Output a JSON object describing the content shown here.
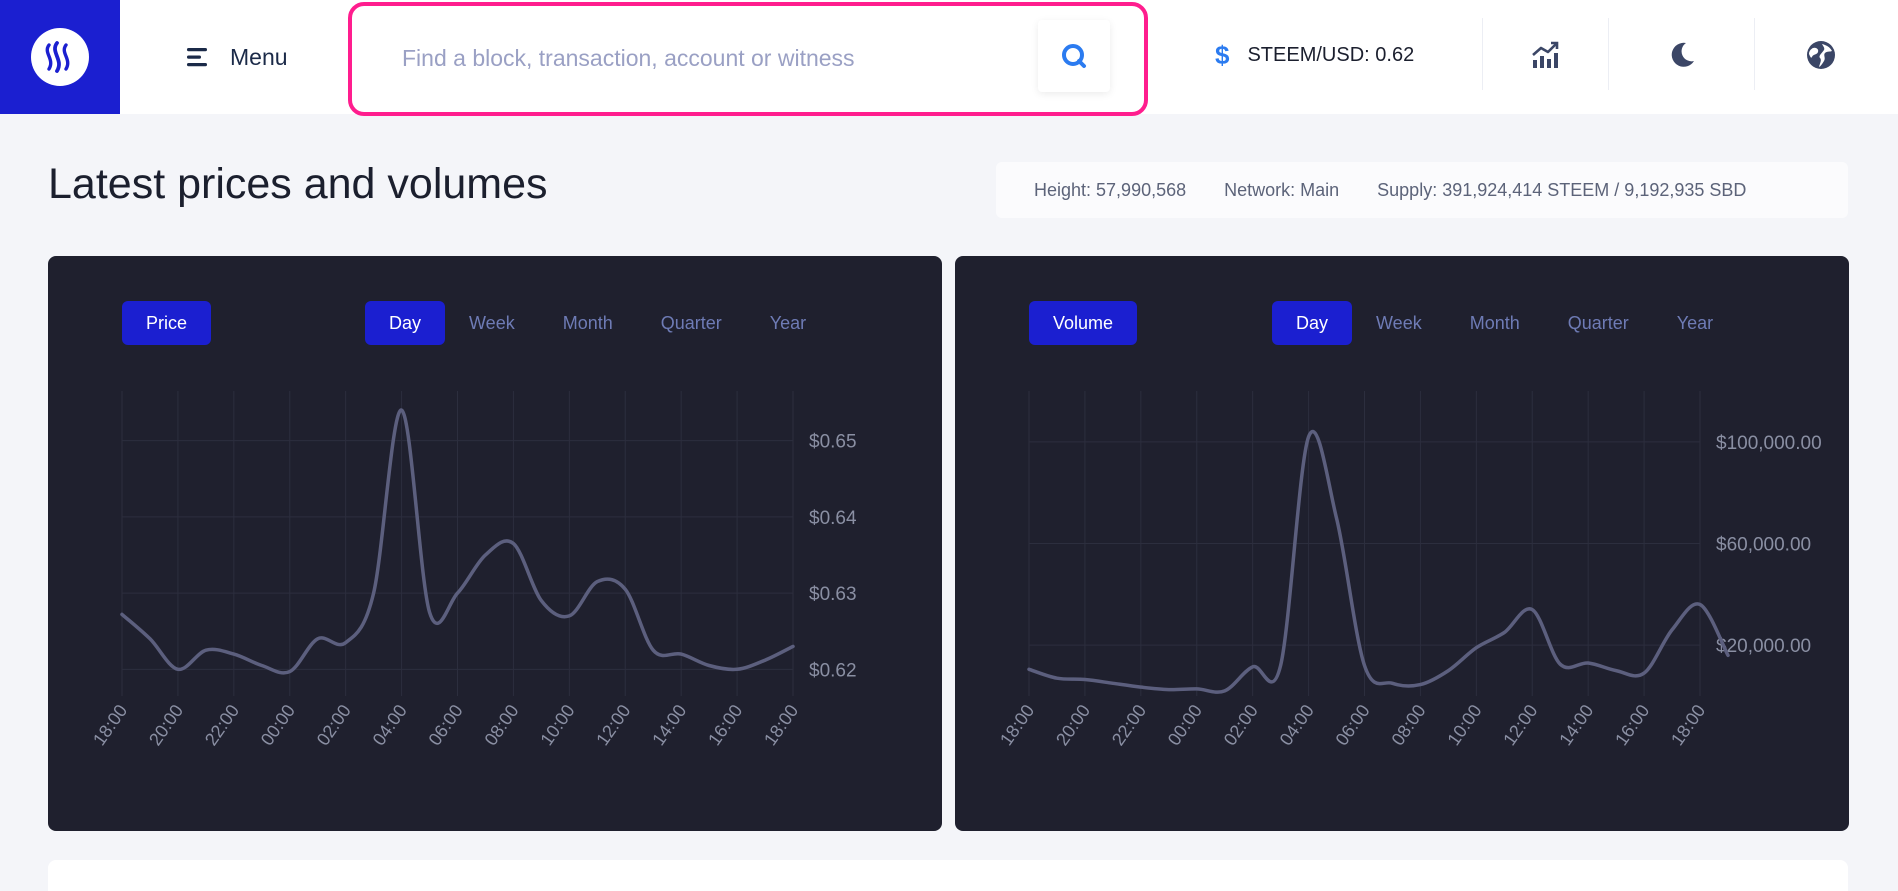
{
  "header": {
    "menu_label": "Menu",
    "search_placeholder": "Find a block, transaction, account or witness",
    "ticker": "STEEM/USD: 0.62",
    "icons": [
      "steem-logo-icon",
      "menu-icon",
      "search-icon",
      "dollar-icon",
      "chart-trend-icon",
      "moon-icon",
      "globe-icon"
    ]
  },
  "page": {
    "title": "Latest prices and volumes"
  },
  "stats": {
    "height": "Height: 57,990,568",
    "network": "Network: Main",
    "supply": "Supply: 391,924,414 STEEM / 9,192,935 SBD"
  },
  "ranges": [
    "Day",
    "Week",
    "Month",
    "Quarter",
    "Year"
  ],
  "colors": {
    "accent": "#1b1fd0",
    "panel_bg": "#1f202e",
    "line": "#5c5f7e",
    "highlight": "#ff1d8e"
  },
  "chart_data": [
    {
      "type": "line",
      "tab_label": "Price",
      "active_range": "Day",
      "x": [
        "18:00",
        "20:00",
        "22:00",
        "00:00",
        "02:00",
        "04:00",
        "06:00",
        "08:00",
        "10:00",
        "12:00",
        "14:00",
        "16:00",
        "18:00"
      ],
      "y_ticks": [
        "$0.65",
        "$0.64",
        "$0.63",
        "$0.62"
      ],
      "ylim": [
        0.6165,
        0.6565
      ],
      "grid": true,
      "series": [
        {
          "points": [
            [
              0,
              0.6272
            ],
            [
              0.5,
              0.624
            ],
            [
              1,
              0.62
            ],
            [
              1.5,
              0.6225
            ],
            [
              2,
              0.622
            ],
            [
              2.5,
              0.6205
            ],
            [
              3,
              0.6197
            ],
            [
              3.5,
              0.624
            ],
            [
              4,
              0.6235
            ],
            [
              4.5,
              0.63
            ],
            [
              5,
              0.654
            ],
            [
              5.5,
              0.6275
            ],
            [
              6,
              0.63
            ],
            [
              6.5,
              0.635
            ],
            [
              7,
              0.6365
            ],
            [
              7.5,
              0.629
            ],
            [
              8,
              0.627
            ],
            [
              8.5,
              0.6315
            ],
            [
              9,
              0.6305
            ],
            [
              9.5,
              0.6225
            ],
            [
              10,
              0.622
            ],
            [
              10.5,
              0.6205
            ],
            [
              11,
              0.62
            ],
            [
              11.5,
              0.6212
            ],
            [
              12,
              0.623
            ]
          ]
        }
      ]
    },
    {
      "type": "line",
      "tab_label": "Volume",
      "active_range": "Day",
      "x": [
        "18:00",
        "20:00",
        "22:00",
        "00:00",
        "02:00",
        "04:00",
        "06:00",
        "08:00",
        "10:00",
        "12:00",
        "14:00",
        "16:00",
        "18:00"
      ],
      "y_ticks": [
        "$100,000.00",
        "$60,000.00",
        "$20,000.00"
      ],
      "ylim": [
        0,
        120000
      ],
      "grid": true,
      "series": [
        {
          "points": [
            [
              0,
              10500
            ],
            [
              0.5,
              7000
            ],
            [
              1,
              6500
            ],
            [
              1.5,
              5000
            ],
            [
              2,
              3500
            ],
            [
              2.5,
              2500
            ],
            [
              3,
              2800
            ],
            [
              3.5,
              2000
            ],
            [
              4,
              11500
            ],
            [
              4.5,
              12000
            ],
            [
              5,
              102000
            ],
            [
              5.5,
              70000
            ],
            [
              6,
              12000
            ],
            [
              6.5,
              5000
            ],
            [
              7,
              4500
            ],
            [
              7.5,
              10000
            ],
            [
              8,
              19000
            ],
            [
              8.5,
              25000
            ],
            [
              9,
              34000
            ],
            [
              9.5,
              12500
            ],
            [
              10,
              13000
            ],
            [
              10.5,
              10000
            ],
            [
              11,
              9000
            ],
            [
              11.5,
              26000
            ],
            [
              12,
              36000
            ],
            [
              12.5,
              16000
            ]
          ]
        }
      ]
    }
  ]
}
